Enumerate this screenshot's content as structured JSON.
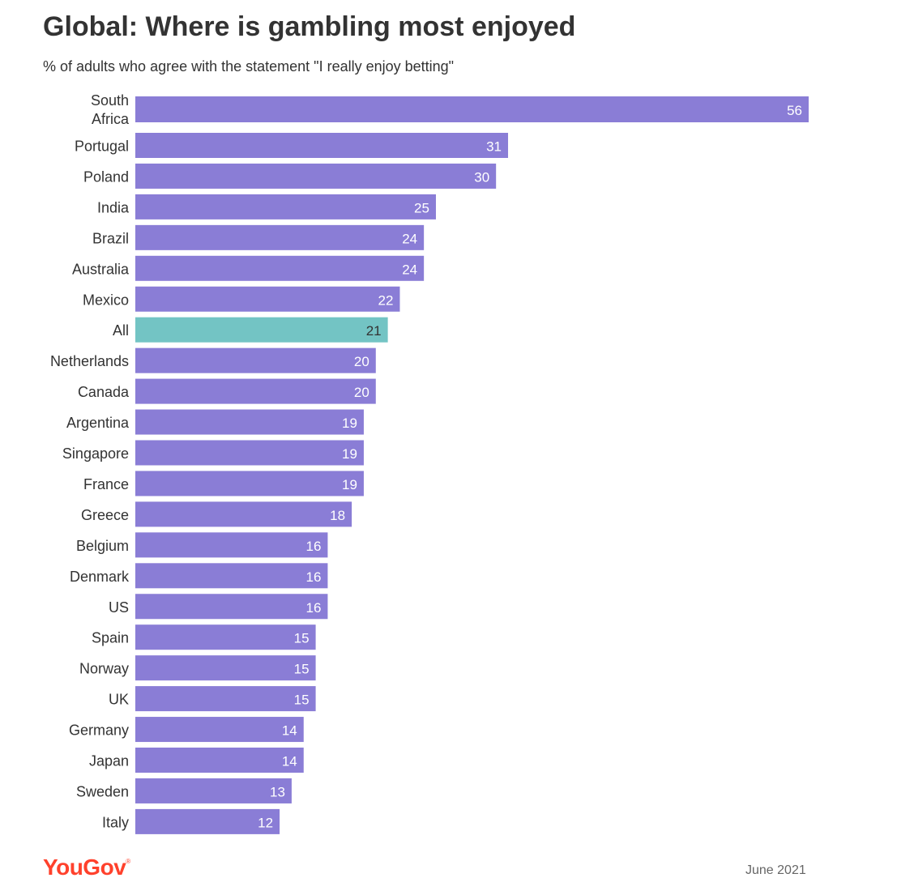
{
  "header": {
    "title": "Global: Where is gambling most enjoyed",
    "subtitle": "% of adults who agree with the statement \"I really enjoy betting\""
  },
  "footer": {
    "brand": "YouGov",
    "date": "June 2021"
  },
  "colors": {
    "bar": "#8a7dd6",
    "highlight": "#73c4c4",
    "highlight_label": "#333333",
    "bar_label": "#ffffff",
    "brand": "#ff412c"
  },
  "chart_data": {
    "type": "bar",
    "orientation": "horizontal",
    "title": "Global: Where is gambling most enjoyed",
    "subtitle": "% of adults who agree with the statement \"I really enjoy betting\"",
    "categories": [
      "South Africa",
      "Portugal",
      "Poland",
      "India",
      "Brazil",
      "Australia",
      "Mexico",
      "All",
      "Netherlands",
      "Canada",
      "Argentina",
      "Singapore",
      "France",
      "Greece",
      "Belgium",
      "Denmark",
      "US",
      "Spain",
      "Norway",
      "UK",
      "Germany",
      "Japan",
      "Sweden",
      "Italy"
    ],
    "values": [
      56,
      31,
      30,
      25,
      24,
      24,
      22,
      21,
      20,
      20,
      19,
      19,
      19,
      18,
      16,
      16,
      16,
      15,
      15,
      15,
      14,
      14,
      13,
      12
    ],
    "highlight_category": "All",
    "xlim": [
      0,
      56
    ],
    "grid": false,
    "data_labels": true
  }
}
